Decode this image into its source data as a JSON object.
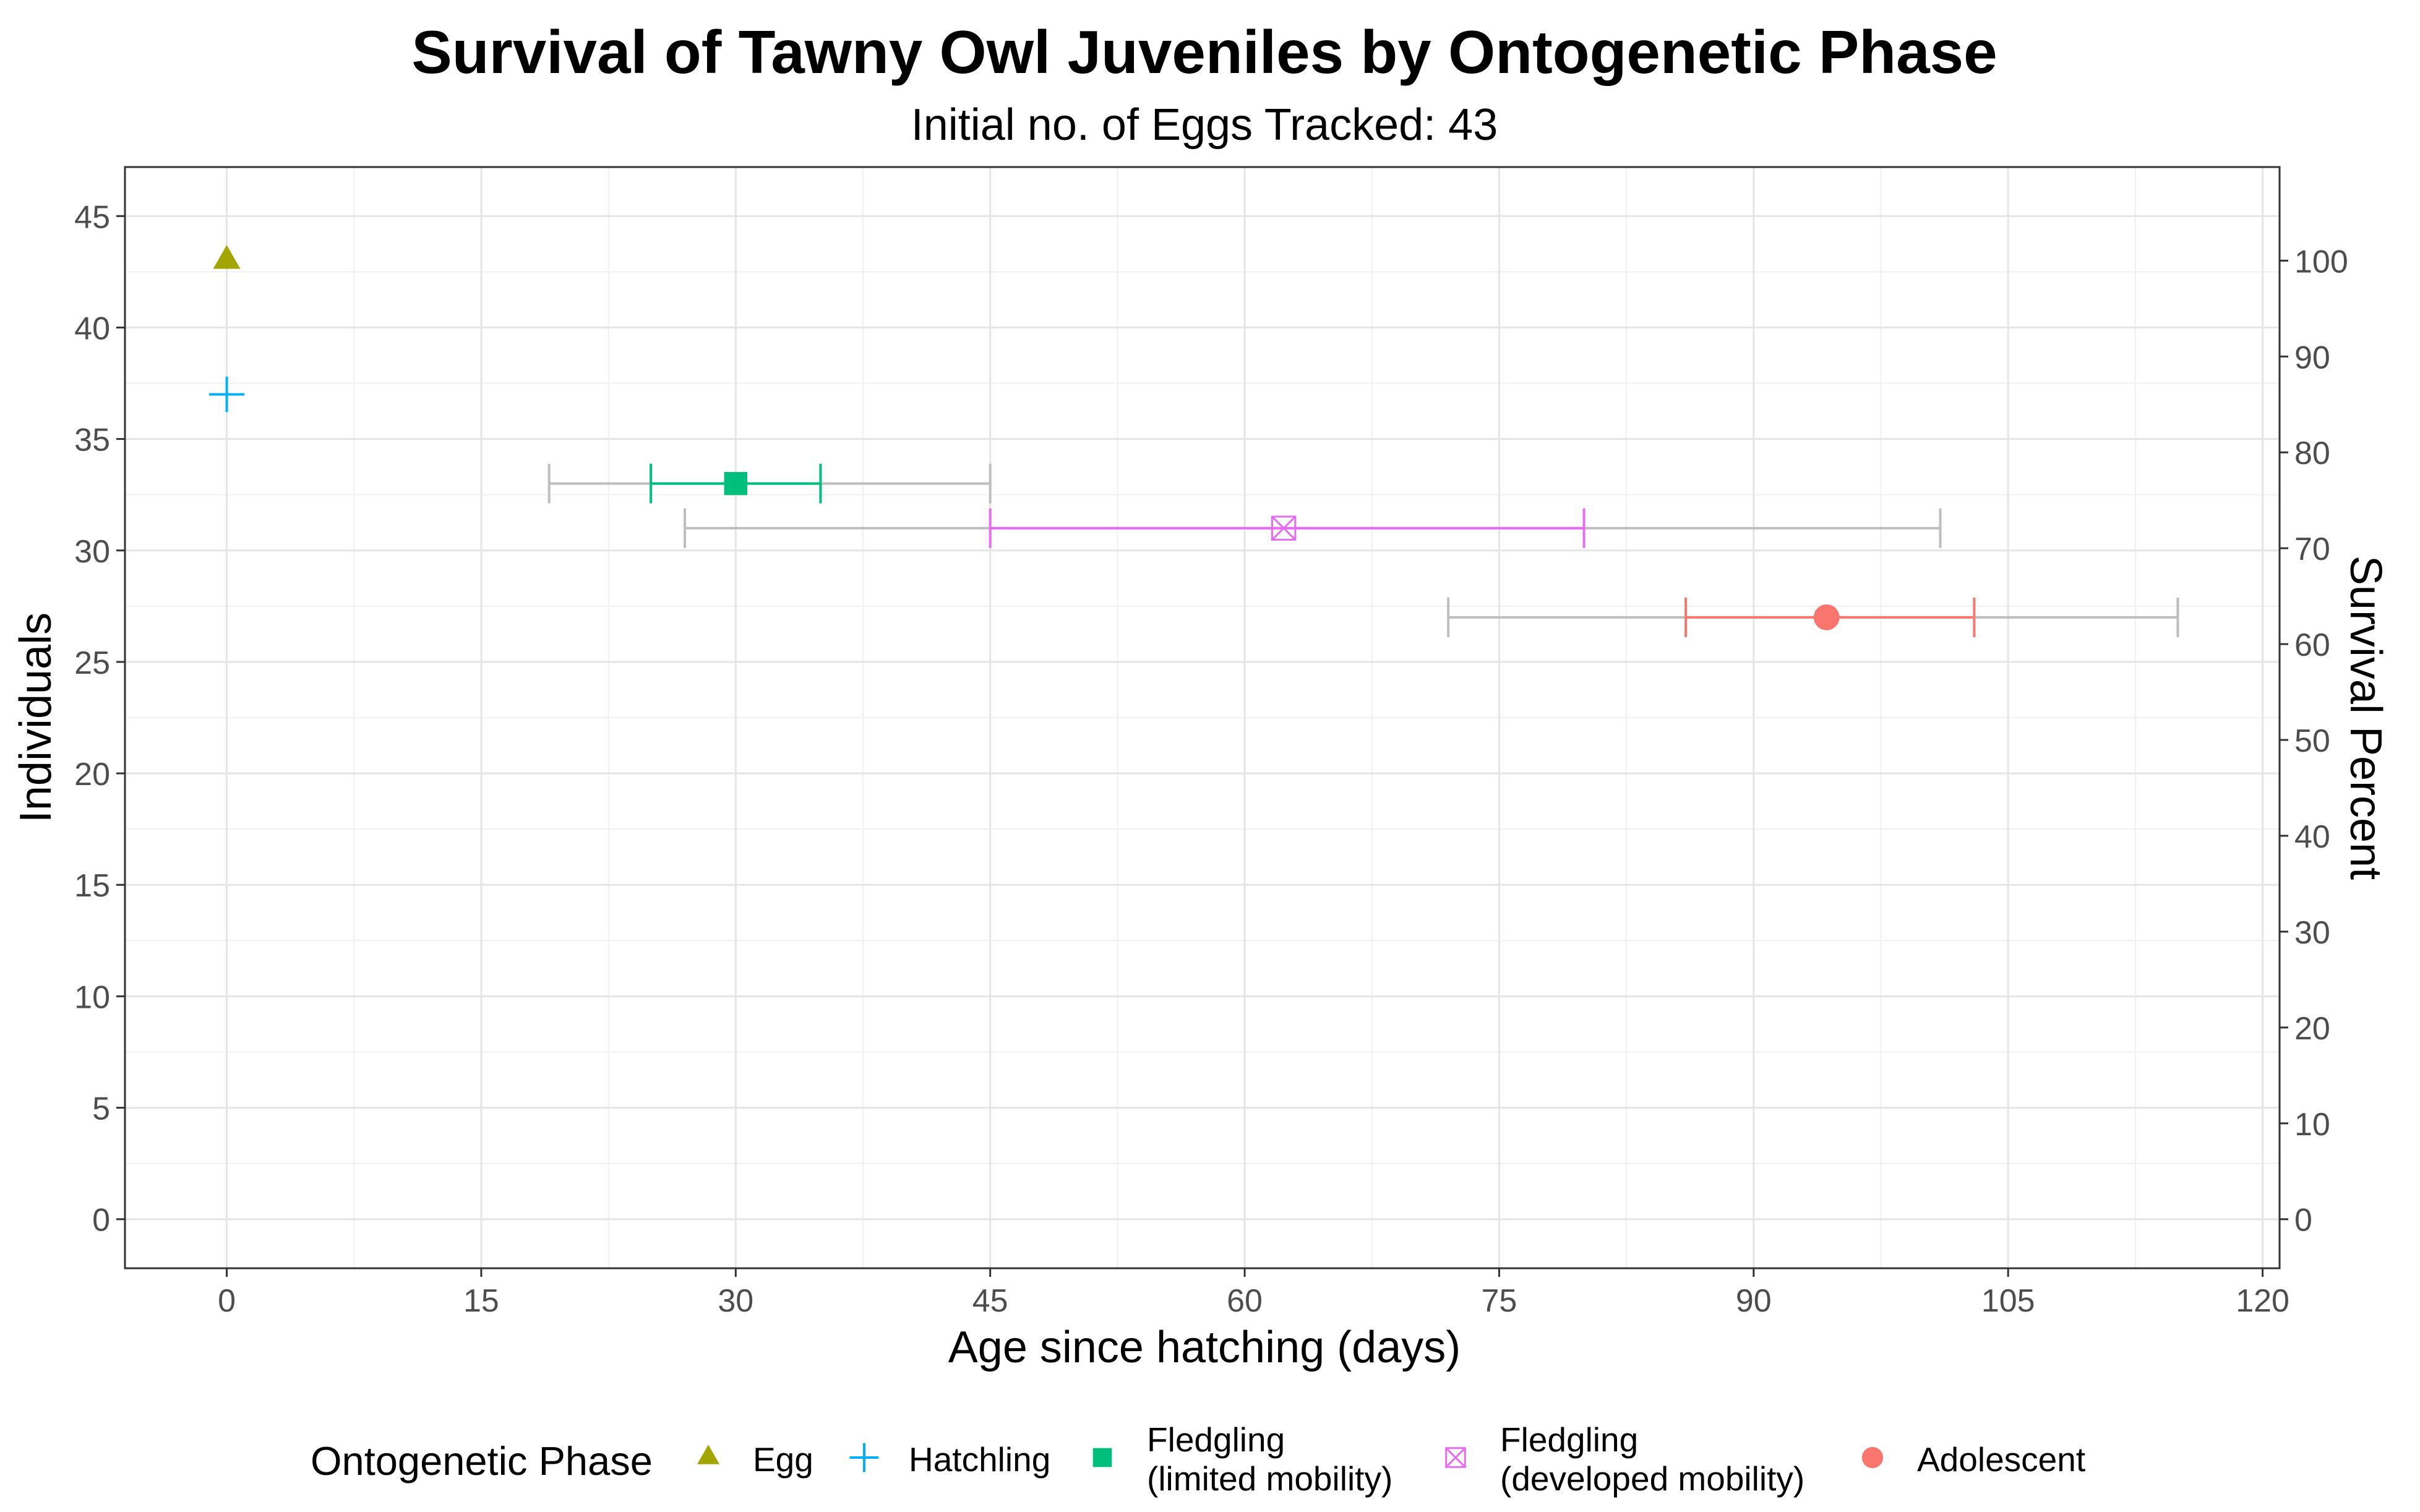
{
  "chart_data": {
    "type": "scatter",
    "title": "Survival of Tawny Owl Juveniles by Ontogenetic Phase",
    "subtitle": "Initial no. of Eggs Tracked: 43",
    "xlabel": "Age since hatching (days)",
    "ylabel": "Individuals",
    "y2label": "Survival Percent",
    "xlim": [
      -6,
      121
    ],
    "ylim": [
      -2.2,
      47.2
    ],
    "x_ticks": [
      0,
      15,
      30,
      45,
      60,
      75,
      90,
      105,
      120
    ],
    "y_ticks": [
      0,
      5,
      10,
      15,
      20,
      25,
      30,
      35,
      40,
      45
    ],
    "y2_ticks": [
      0,
      10,
      20,
      30,
      40,
      50,
      60,
      70,
      80,
      90,
      100
    ],
    "y2_scale_base": 43,
    "grid": true,
    "legend_title": "Ontogenetic Phase",
    "legend_position": "bottom",
    "series": [
      {
        "name": "Egg",
        "label_lines": [
          "Egg"
        ],
        "x": 0,
        "y": 43,
        "color": "#A3A500",
        "shape": "triangle",
        "inner_range": null,
        "outer_range": null
      },
      {
        "name": "Hatchling",
        "label_lines": [
          "Hatchling"
        ],
        "x": 0,
        "y": 37,
        "color": "#00B0F6",
        "shape": "plus",
        "inner_range": null,
        "outer_range": null
      },
      {
        "name": "Fledgling (limited mobility)",
        "label_lines": [
          "Fledgling",
          "(limited mobility)"
        ],
        "x": 30,
        "y": 33,
        "color": "#00BF7D",
        "shape": "square",
        "inner_range": [
          25,
          35
        ],
        "outer_range": [
          19,
          45
        ]
      },
      {
        "name": "Fledgling (developed mobility)",
        "label_lines": [
          "Fledgling",
          "(developed mobility)"
        ],
        "x": 62.3,
        "y": 31,
        "color": "#E76BF3",
        "shape": "square-x",
        "inner_range": [
          45,
          80
        ],
        "outer_range": [
          27,
          101
        ]
      },
      {
        "name": "Adolescent",
        "label_lines": [
          "Adolescent"
        ],
        "x": 94.3,
        "y": 27,
        "color": "#F8766D",
        "shape": "circle",
        "inner_range": [
          86,
          103
        ],
        "outer_range": [
          72,
          115
        ]
      }
    ],
    "range_color": "#BEBEBE"
  }
}
